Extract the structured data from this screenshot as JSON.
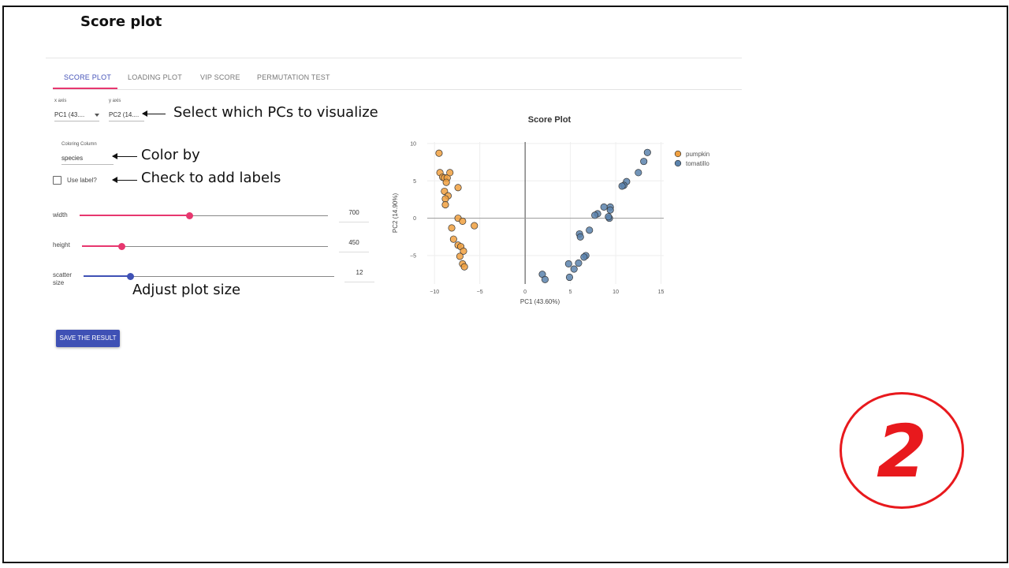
{
  "slide": {
    "title": "Score plot",
    "step_number": "2"
  },
  "tabs": [
    {
      "label": "SCORE PLOT",
      "active": true
    },
    {
      "label": "LOADING PLOT",
      "active": false
    },
    {
      "label": "VIP SCORE",
      "active": false
    },
    {
      "label": "PERMUTATION TEST",
      "active": false
    }
  ],
  "axes_select": {
    "x_label": "x axis",
    "x_value": "PC1 (43....",
    "y_label": "y axis",
    "y_value": "PC2 (14...."
  },
  "coloring": {
    "label": "Coloring Column",
    "value": "species"
  },
  "use_label": {
    "label": "Use label?",
    "checked": false
  },
  "sliders": {
    "width": {
      "label": "width",
      "value": "700"
    },
    "height": {
      "label": "height",
      "value": "450"
    },
    "scatter_size": {
      "label": "scatter size",
      "value": "12"
    }
  },
  "save_button": "SAVE THE RESULT",
  "annotations": {
    "select_pcs": "Select which PCs to visualize",
    "color_by": "Color by",
    "check_labels": "Check to add labels",
    "adjust_size": "Adjust plot size"
  },
  "colors": {
    "pumpkin": "#f0a040",
    "tomatillo": "#5b83ad",
    "accent_pink": "#e7376f",
    "accent_blue": "#3f51b5",
    "badge_red": "#e8191d"
  },
  "chart_data": {
    "type": "scatter",
    "title": "Score Plot",
    "xlabel": "PC1 (43.60%)",
    "ylabel": "PC2 (14.90%)",
    "xlim": [
      -10.8,
      15.3
    ],
    "ylim": [
      -8.8,
      10.2
    ],
    "xticks": [
      -10,
      -5,
      0,
      5,
      10,
      15
    ],
    "yticks": [
      10,
      5,
      0,
      -5
    ],
    "legend_position": "top-right",
    "series": [
      {
        "name": "pumpkin",
        "color": "#f0a040",
        "points": [
          [
            -9.5,
            8.7
          ],
          [
            -9.4,
            6.1
          ],
          [
            -9.1,
            5.5
          ],
          [
            -8.9,
            5.4
          ],
          [
            -8.6,
            5.4
          ],
          [
            -8.3,
            6.1
          ],
          [
            -8.9,
            3.6
          ],
          [
            -8.5,
            3.0
          ],
          [
            -8.8,
            2.6
          ],
          [
            -8.8,
            1.8
          ],
          [
            -7.4,
            4.1
          ],
          [
            -8.7,
            4.8
          ],
          [
            -7.4,
            0.0
          ],
          [
            -6.9,
            -0.4
          ],
          [
            -5.6,
            -1.0
          ],
          [
            -8.1,
            -1.3
          ],
          [
            -7.9,
            -2.8
          ],
          [
            -7.4,
            -3.6
          ],
          [
            -7.1,
            -3.8
          ],
          [
            -6.8,
            -4.4
          ],
          [
            -7.2,
            -5.1
          ],
          [
            -6.9,
            -6.1
          ],
          [
            -6.7,
            -6.5
          ]
        ]
      },
      {
        "name": "tomatillo",
        "color": "#5b83ad",
        "points": [
          [
            13.5,
            8.8
          ],
          [
            13.1,
            7.6
          ],
          [
            12.5,
            6.1
          ],
          [
            11.2,
            4.9
          ],
          [
            10.9,
            4.4
          ],
          [
            10.7,
            4.3
          ],
          [
            9.4,
            1.5
          ],
          [
            9.4,
            1.1
          ],
          [
            8.7,
            1.5
          ],
          [
            8.0,
            0.6
          ],
          [
            7.7,
            0.4
          ],
          [
            9.3,
            0.0
          ],
          [
            9.2,
            0.2
          ],
          [
            7.1,
            -1.6
          ],
          [
            6.0,
            -2.1
          ],
          [
            6.1,
            -2.5
          ],
          [
            6.7,
            -5.0
          ],
          [
            6.5,
            -5.2
          ],
          [
            5.9,
            -6.0
          ],
          [
            4.8,
            -6.1
          ],
          [
            5.4,
            -6.8
          ],
          [
            4.9,
            -7.9
          ],
          [
            1.9,
            -7.5
          ],
          [
            2.2,
            -8.2
          ]
        ]
      }
    ]
  }
}
